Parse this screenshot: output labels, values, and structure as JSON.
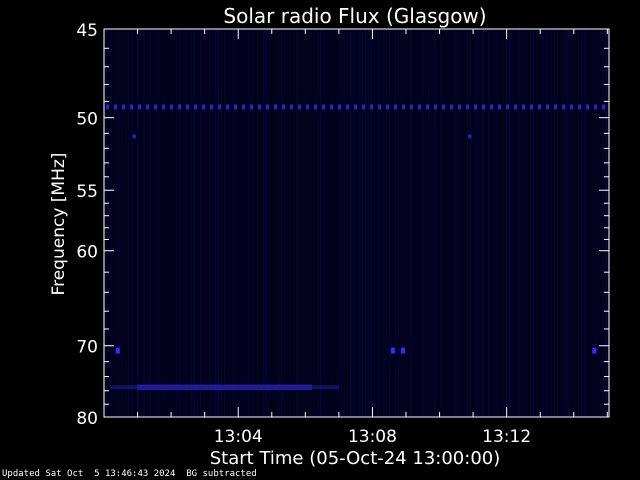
{
  "chart_data": {
    "type": "heatmap",
    "title": "Solar radio Flux (Glasgow)",
    "xlabel": "Start Time (05-Oct-24 13:00:00)",
    "ylabel": "Frequency [MHz]",
    "x_unit": "minutes after 13:00:00",
    "xlim": [
      0.0,
      15.05
    ],
    "ylim": [
      45,
      80
    ],
    "y_scale": "reciprocal",
    "x_ticks": [
      {
        "value": 4,
        "label": "13:04"
      },
      {
        "value": 8,
        "label": "13:08"
      },
      {
        "value": 12,
        "label": "13:12"
      }
    ],
    "y_ticks": [
      {
        "value": 45,
        "label": "45"
      },
      {
        "value": 50,
        "label": "50"
      },
      {
        "value": 55,
        "label": "55"
      },
      {
        "value": 60,
        "label": "60"
      },
      {
        "value": 70,
        "label": "70"
      },
      {
        "value": 80,
        "label": "80"
      }
    ],
    "features": [
      {
        "name": "interference-line",
        "freq_mhz": 49.3,
        "t_start": 0.0,
        "t_end": 15.05,
        "intensity": "dashed"
      },
      {
        "name": "strong-band",
        "freq_mhz": 75.5,
        "t_start": 1.0,
        "t_end": 6.2,
        "intensity": "high"
      },
      {
        "name": "faint-band",
        "freq_mhz": 75.5,
        "t_start": 0.2,
        "t_end": 7.0,
        "intensity": "low"
      },
      {
        "name": "spot",
        "freq_mhz": 70.6,
        "t_start": 0.35,
        "t_end": 0.45,
        "intensity": "high"
      },
      {
        "name": "spot",
        "freq_mhz": 70.6,
        "t_start": 8.55,
        "t_end": 8.65,
        "intensity": "high"
      },
      {
        "name": "spot",
        "freq_mhz": 70.6,
        "t_start": 8.85,
        "t_end": 8.95,
        "intensity": "high"
      },
      {
        "name": "spot",
        "freq_mhz": 70.6,
        "t_start": 14.55,
        "t_end": 14.65,
        "intensity": "high"
      },
      {
        "name": "spot",
        "freq_mhz": 51.2,
        "t_start": 0.85,
        "t_end": 0.95,
        "intensity": "medium"
      },
      {
        "name": "spot",
        "freq_mhz": 51.2,
        "t_start": 10.85,
        "t_end": 10.95,
        "intensity": "medium"
      }
    ],
    "grid": false,
    "colors": {
      "background": "#000000",
      "heat_low": "#000018",
      "heat_high": "#3a28ff",
      "axes": "#ffffff"
    }
  },
  "footer": {
    "updated": "Updated Sat Oct  5 13:46:43 2024",
    "note": "BG subtracted"
  }
}
